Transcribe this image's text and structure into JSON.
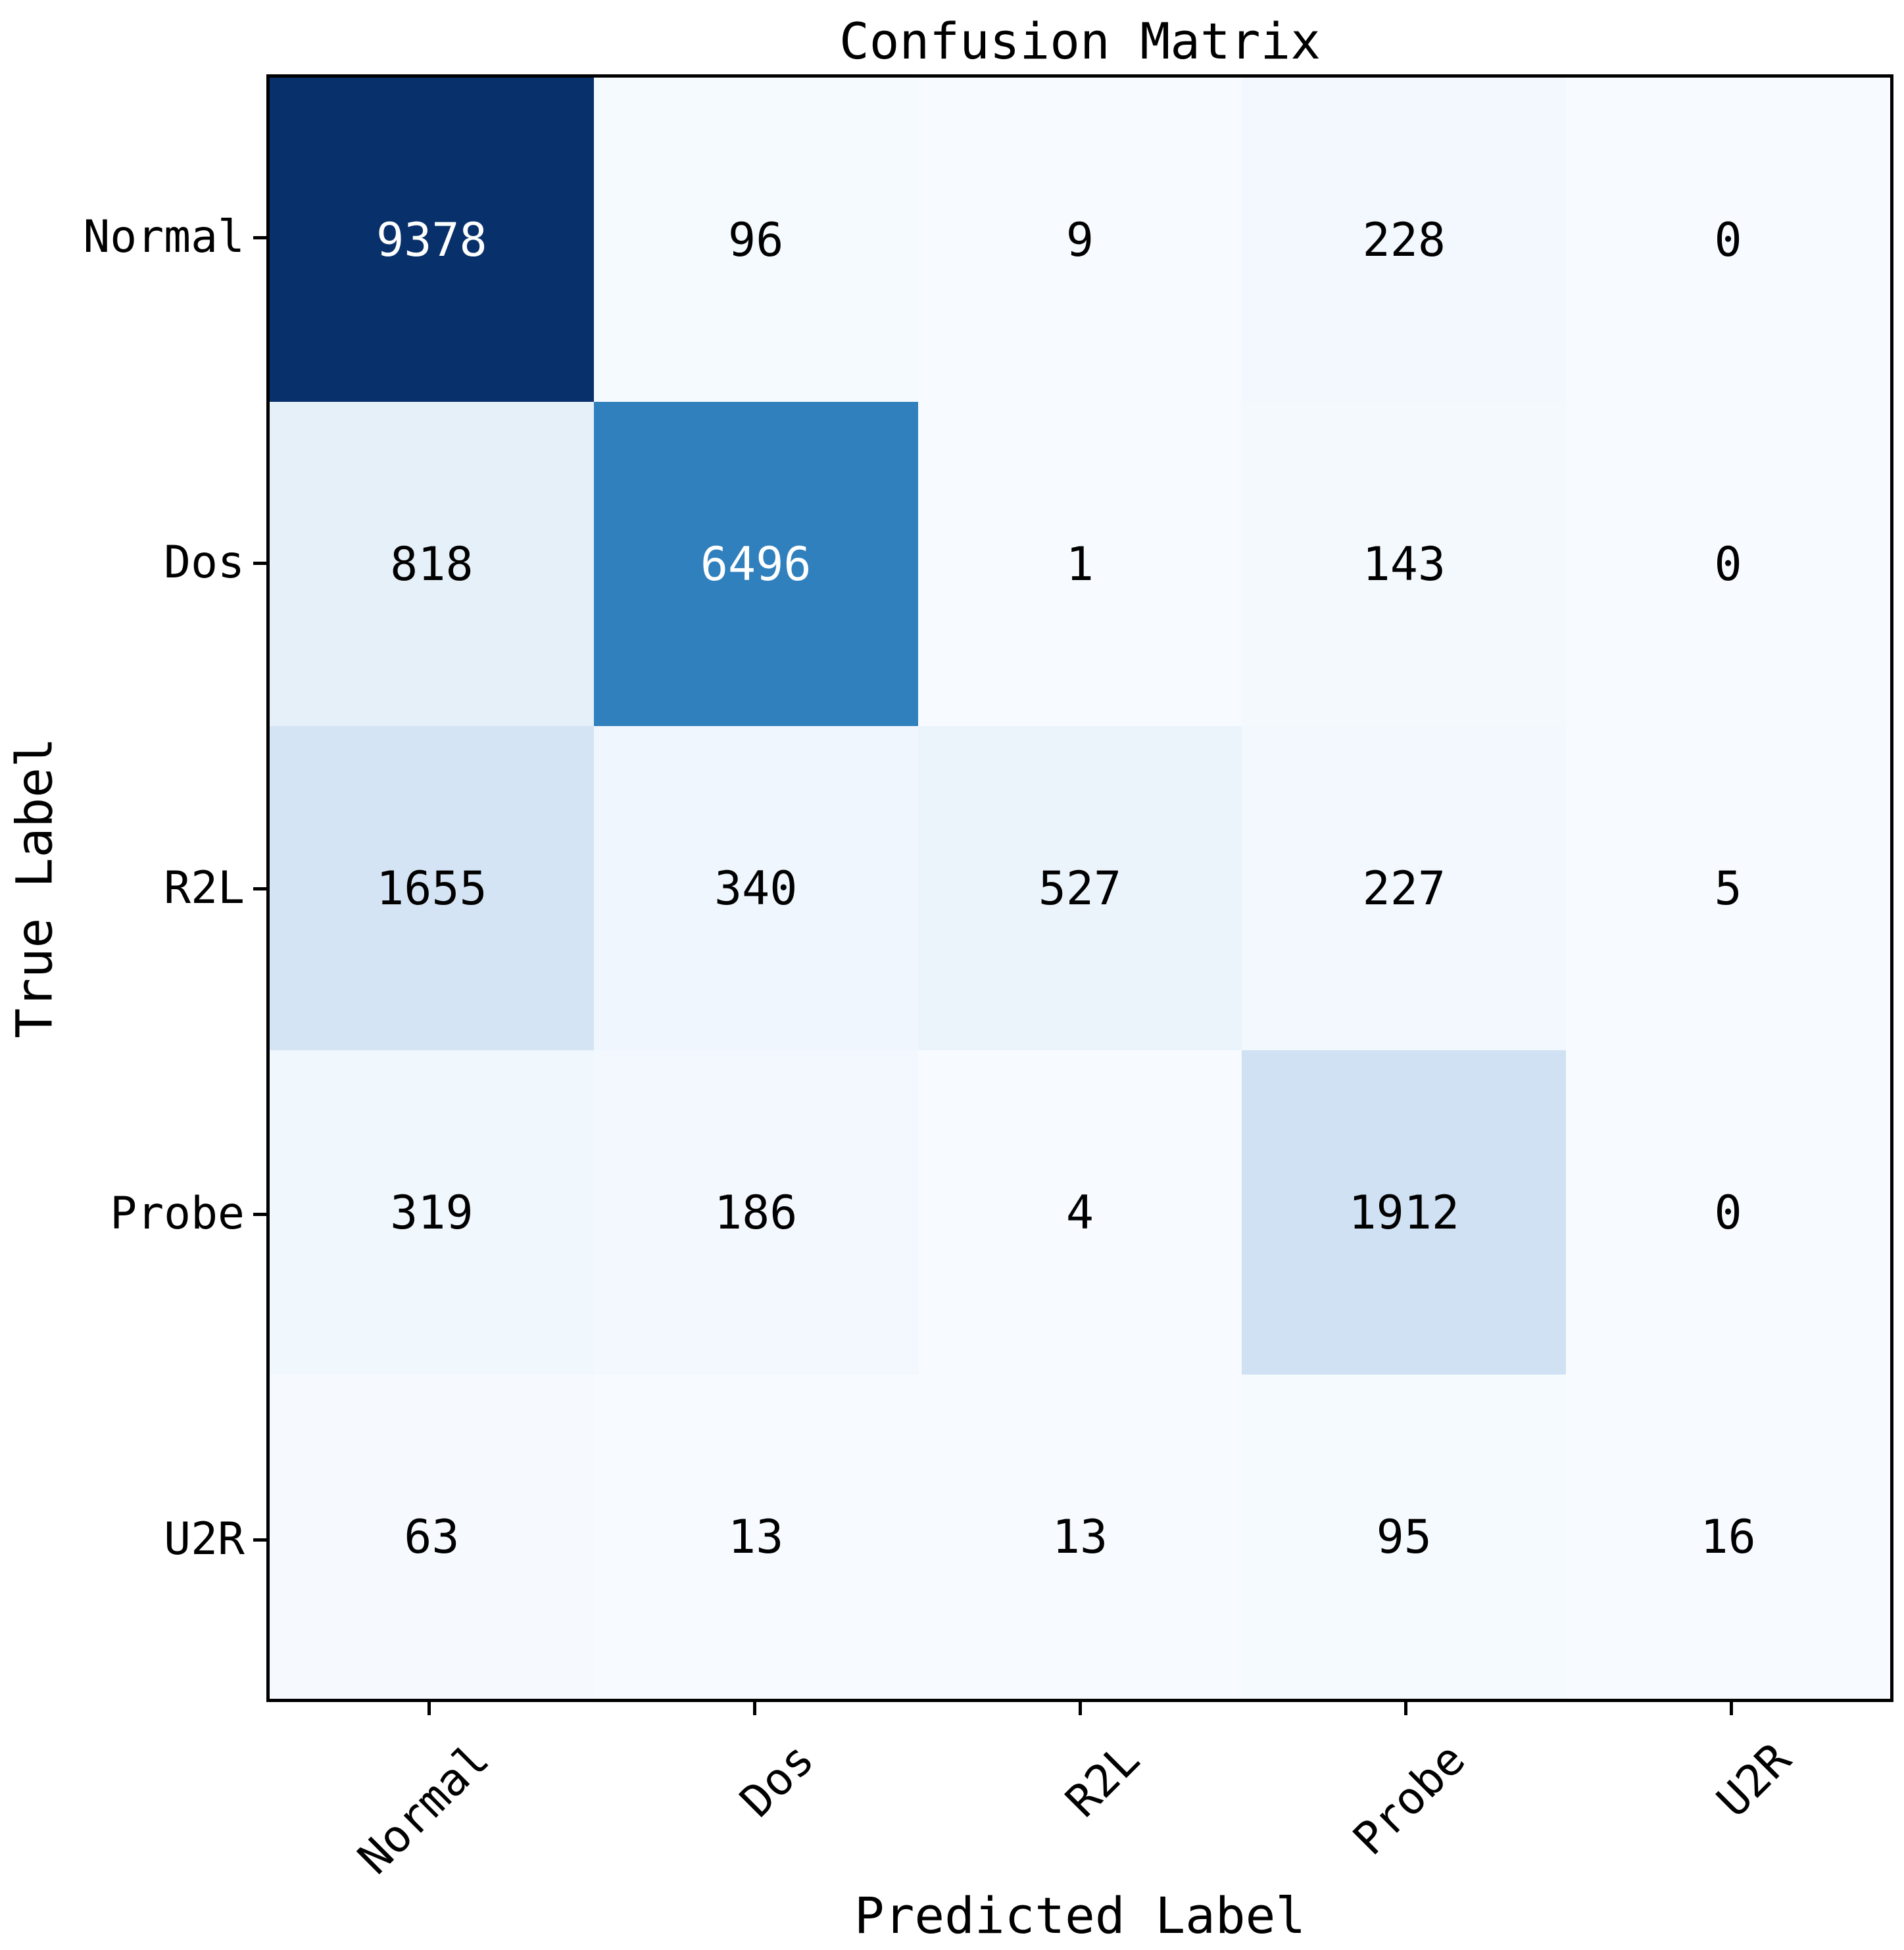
{
  "chart_data": {
    "type": "heatmap",
    "title": "Confusion Matrix",
    "xlabel": "Predicted Label",
    "ylabel": "True Label",
    "row_axis": "True Label",
    "col_axis": "Predicted Label",
    "categories": [
      "Normal",
      "Dos",
      "R2L",
      "Probe",
      "U2R"
    ],
    "matrix": [
      [
        9378,
        96,
        9,
        228,
        0
      ],
      [
        818,
        6496,
        1,
        143,
        0
      ],
      [
        1655,
        340,
        527,
        227,
        5
      ],
      [
        319,
        186,
        4,
        1912,
        0
      ],
      [
        63,
        13,
        13,
        95,
        16
      ]
    ],
    "vmin": 0,
    "vmax": 9378,
    "colormap": {
      "name": "Blues",
      "anchors": [
        {
          "pos": 0.0,
          "hex": "#f7fbff"
        },
        {
          "pos": 0.125,
          "hex": "#deebf7"
        },
        {
          "pos": 0.25,
          "hex": "#c6dbef"
        },
        {
          "pos": 0.375,
          "hex": "#9ecae1"
        },
        {
          "pos": 0.5,
          "hex": "#6baed6"
        },
        {
          "pos": 0.625,
          "hex": "#4292c6"
        },
        {
          "pos": 0.75,
          "hex": "#2171b5"
        },
        {
          "pos": 0.875,
          "hex": "#08519c"
        },
        {
          "pos": 1.0,
          "hex": "#08306b"
        }
      ]
    },
    "text_color_threshold": 0.5,
    "colors": {
      "cell_text_light": "#ffffff",
      "cell_text_dark": "#000000",
      "spine": "#000000",
      "background": "#ffffff"
    },
    "legend": "none",
    "grid": false
  }
}
